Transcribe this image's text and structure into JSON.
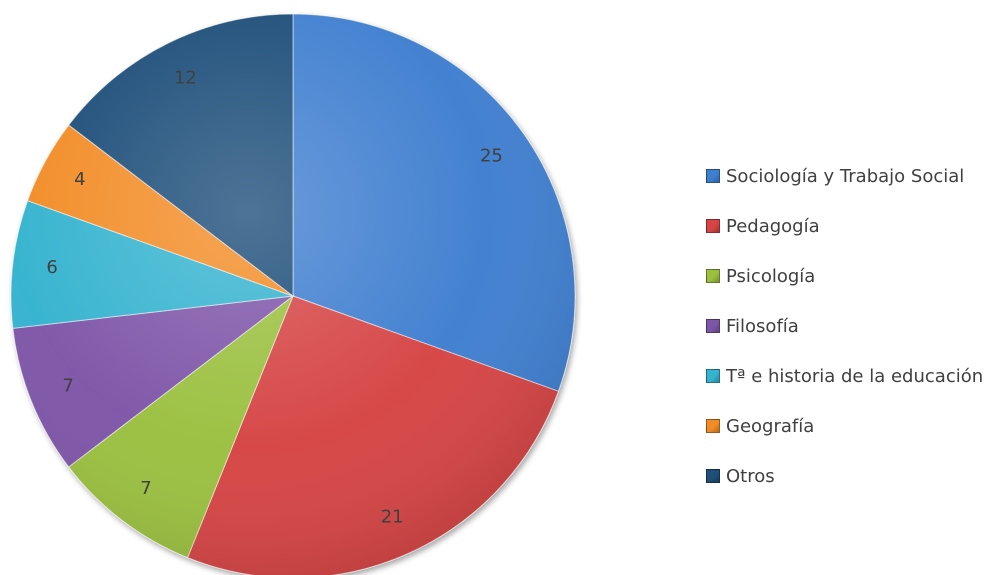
{
  "chart_data": {
    "type": "pie",
    "title": "",
    "categories": [
      "Sociología y Trabajo Social",
      "Pedagogía",
      "Psicología",
      "Filosofía",
      "Tª e historia de la educación",
      "Geografía",
      "Otros"
    ],
    "values": [
      25,
      21,
      7,
      7,
      6,
      4,
      12
    ],
    "colors": [
      "#3F7FD0",
      "#D64545",
      "#9BC03F",
      "#7E56A8",
      "#36B3CF",
      "#F28C28",
      "#1F4E79"
    ],
    "start": "12 o'clock",
    "direction": "clockwise",
    "legend": "right"
  }
}
